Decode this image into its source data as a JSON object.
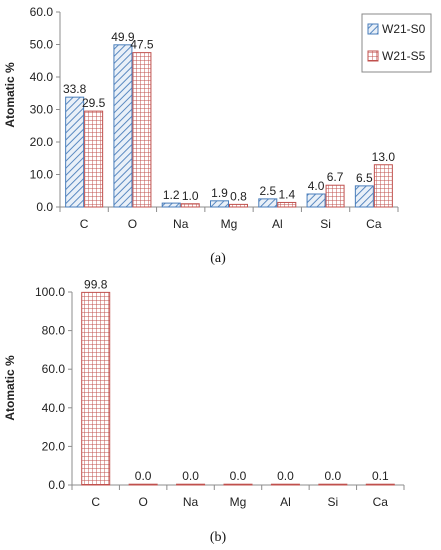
{
  "colors": {
    "series_s0": "#4a7ebb",
    "series_s5": "#c0504d",
    "axis": "#8c8c8c",
    "text": "#222222"
  },
  "chart_data": [
    {
      "type": "bar",
      "caption": "(a)",
      "ylabel": "Atomatic %",
      "ylim": [
        0,
        60
      ],
      "yticks": [
        "0.0",
        "10.0",
        "20.0",
        "30.0",
        "40.0",
        "50.0",
        "60.0"
      ],
      "categories": [
        "C",
        "O",
        "Na",
        "Mg",
        "Al",
        "Si",
        "Ca"
      ],
      "legend_position": "top-right",
      "series": [
        {
          "name": "W21-S0",
          "values": [
            33.8,
            49.9,
            1.2,
            1.9,
            2.5,
            4.0,
            6.5
          ],
          "labels": [
            "33.8",
            "49.9",
            "1.2",
            "1.9",
            "2.5",
            "4.0",
            "6.5"
          ]
        },
        {
          "name": "W21-S5",
          "values": [
            29.5,
            47.5,
            1.0,
            0.8,
            1.4,
            6.7,
            13.0
          ],
          "labels": [
            "29.5",
            "47.5",
            "1.0",
            "0.8",
            "1.4",
            "6.7",
            "13.0"
          ]
        }
      ]
    },
    {
      "type": "bar",
      "caption": "(b)",
      "ylabel": "Atomatic %",
      "ylim": [
        0,
        100
      ],
      "yticks": [
        "0.0",
        "20.0",
        "40.0",
        "60.0",
        "80.0",
        "100.0"
      ],
      "categories": [
        "C",
        "O",
        "Na",
        "Mg",
        "Al",
        "Si",
        "Ca"
      ],
      "series": [
        {
          "values": [
            99.8,
            0.0,
            0.0,
            0.0,
            0.0,
            0.0,
            0.1
          ],
          "labels": [
            "99.8",
            "0.0",
            "0.0",
            "0.0",
            "0.0",
            "0.0",
            "0.1"
          ]
        }
      ]
    }
  ]
}
